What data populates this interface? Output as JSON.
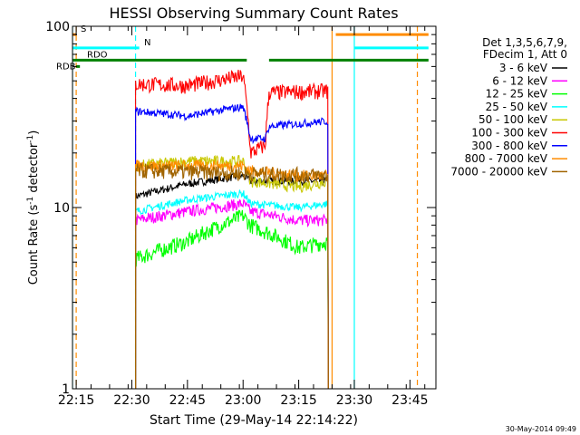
{
  "chart_data": {
    "type": "line",
    "title": "HESSI Observing Summary Count Rates",
    "xlabel": "Start Time (29-May-14 22:14:22)",
    "ylabel_main": "Count Rate (s",
    "ylabel_sup": "-1",
    "ylabel_mid": " detector",
    "ylabel_sup2": "-1",
    "ylabel_end": ")",
    "yscale": "log",
    "ylim": [
      1,
      100
    ],
    "xlim": [
      "22:14",
      "23:52"
    ],
    "x_ticks": [
      "22:15",
      "22:30",
      "22:45",
      "23:00",
      "23:15",
      "23:30",
      "23:45"
    ],
    "y_ticks": [
      {
        "value": 1,
        "label": "1"
      },
      {
        "value": 10,
        "label": "10"
      },
      {
        "value": 100,
        "label": "100"
      }
    ],
    "legend_header": [
      "Det 1,3,5,6,7,9,",
      "FDecim 1, Att 0"
    ],
    "series": [
      {
        "name": "3 - 6 keV",
        "color": "#000000",
        "segments": [
          {
            "t": "22:31",
            "v": 11.5
          },
          {
            "t": "22:45",
            "v": 13.5
          },
          {
            "t": "23:00",
            "v": 15
          },
          {
            "t": "23:02",
            "v": 14
          },
          {
            "t": "23:15",
            "v": 14
          },
          {
            "t": "23:23",
            "v": 14
          }
        ]
      },
      {
        "name": "6 - 12 keV",
        "color": "#ff00ff",
        "segments": [
          {
            "t": "22:31",
            "v": 8.5
          },
          {
            "t": "22:45",
            "v": 9.5
          },
          {
            "t": "23:00",
            "v": 10.5
          },
          {
            "t": "23:02",
            "v": 9.5
          },
          {
            "t": "23:15",
            "v": 8.5
          },
          {
            "t": "23:23",
            "v": 8.5
          }
        ]
      },
      {
        "name": "12 - 25 keV",
        "color": "#00ff00",
        "segments": [
          {
            "t": "22:31",
            "v": 5.2
          },
          {
            "t": "22:45",
            "v": 6.5
          },
          {
            "t": "23:00",
            "v": 9
          },
          {
            "t": "23:02",
            "v": 8
          },
          {
            "t": "23:15",
            "v": 6
          },
          {
            "t": "23:23",
            "v": 6.5
          }
        ]
      },
      {
        "name": "25 - 50 keV",
        "color": "#00ffff",
        "segments": [
          {
            "t": "22:31",
            "v": 9.5
          },
          {
            "t": "22:45",
            "v": 11
          },
          {
            "t": "23:00",
            "v": 12
          },
          {
            "t": "23:02",
            "v": 10.5
          },
          {
            "t": "23:15",
            "v": 10
          },
          {
            "t": "23:23",
            "v": 10.5
          }
        ]
      },
      {
        "name": "50 - 100 keV",
        "color": "#c8c800",
        "segments": [
          {
            "t": "22:31",
            "v": 17
          },
          {
            "t": "22:45",
            "v": 18
          },
          {
            "t": "23:00",
            "v": 18
          },
          {
            "t": "23:02",
            "v": 14
          },
          {
            "t": "23:15",
            "v": 13
          },
          {
            "t": "23:23",
            "v": 14
          }
        ]
      },
      {
        "name": "100 - 300 keV",
        "color": "#ff0000",
        "segments": [
          {
            "t": "22:31",
            "v": 48
          },
          {
            "t": "22:45",
            "v": 47
          },
          {
            "t": "23:00",
            "v": 53
          },
          {
            "t": "23:02",
            "v": 20
          },
          {
            "t": "23:06",
            "v": 22
          },
          {
            "t": "23:07",
            "v": 43
          },
          {
            "t": "23:23",
            "v": 44
          }
        ]
      },
      {
        "name": "300 - 800 keV",
        "color": "#0000ff",
        "segments": [
          {
            "t": "22:31",
            "v": 34
          },
          {
            "t": "22:45",
            "v": 32
          },
          {
            "t": "23:00",
            "v": 36
          },
          {
            "t": "23:02",
            "v": 24
          },
          {
            "t": "23:06",
            "v": 24
          },
          {
            "t": "23:07",
            "v": 28
          },
          {
            "t": "23:23",
            "v": 30
          }
        ]
      },
      {
        "name": "800 - 7000 keV",
        "color": "#ff8c00",
        "segments": [
          {
            "t": "22:31",
            "v": 17
          },
          {
            "t": "22:45",
            "v": 17
          },
          {
            "t": "23:00",
            "v": 17
          },
          {
            "t": "23:02",
            "v": 16
          },
          {
            "t": "23:15",
            "v": 15
          },
          {
            "t": "23:23",
            "v": 15
          }
        ]
      },
      {
        "name": "7000 - 20000 keV",
        "color": "#a06400",
        "segments": [
          {
            "t": "22:31",
            "v": 16
          },
          {
            "t": "23:23",
            "v": 15
          }
        ]
      }
    ],
    "flags": [
      {
        "label": "S",
        "color": "#ff8c00",
        "y": 90,
        "segments": [
          [
            "22:14",
            "22:15"
          ],
          [
            "23:25",
            "23:50"
          ]
        ]
      },
      {
        "label": "N",
        "color": "#00ffff",
        "y": 76,
        "segments": [
          [
            "22:14",
            "22:32"
          ],
          [
            "23:30",
            "23:50"
          ]
        ]
      },
      {
        "label": "RDO",
        "color": "#008000",
        "y": 65,
        "segments": [
          [
            "22:14",
            "23:01"
          ],
          [
            "23:07",
            "23:50"
          ]
        ]
      },
      {
        "label": "RDB",
        "color": "#008000",
        "y": 60,
        "segments": [
          [
            "22:15",
            "22:16"
          ]
        ]
      }
    ],
    "vlines": [
      {
        "t": "22:14",
        "color": "#00ffff",
        "dashed": false
      },
      {
        "t": "22:15",
        "color": "#ff8c00",
        "dashed": true
      },
      {
        "t": "22:31",
        "color": "#00ffff",
        "dashed": true
      },
      {
        "t": "23:30",
        "color": "#00ffff",
        "dashed": false
      },
      {
        "t": "23:47",
        "color": "#ff8c00",
        "dashed": true
      },
      {
        "t": "23:24",
        "color": "#ff8c00",
        "dashed": false
      }
    ]
  },
  "footer": {
    "date_stamp": "30-May-2014 09:49"
  }
}
